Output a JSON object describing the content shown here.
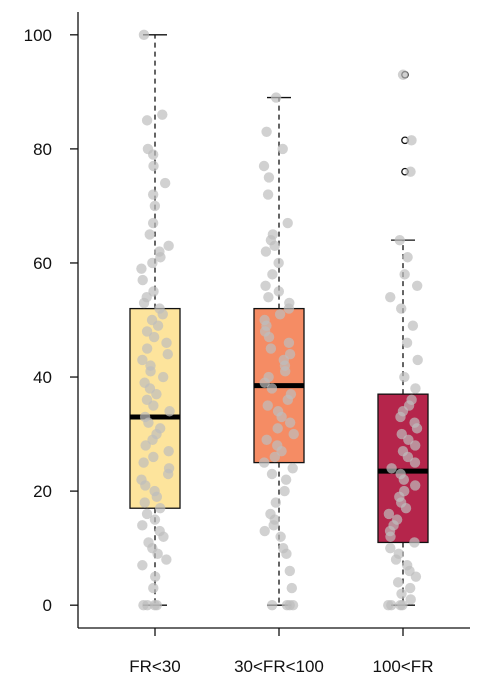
{
  "chart_data": {
    "type": "box",
    "title": "",
    "xlabel": "",
    "ylabel": "",
    "ylim": [
      -4,
      104
    ],
    "yticks": [
      0,
      20,
      40,
      60,
      80,
      100
    ],
    "grid": false,
    "legend": "none",
    "categories": [
      "FR<30",
      "30<FR<100",
      "100<FR"
    ],
    "series": [
      {
        "category": "FR<30",
        "color": "#FDE49C",
        "whisker_low": 0,
        "q1": 17,
        "median": 33,
        "q3": 52,
        "whisker_high": 100,
        "outliers": [],
        "points": [
          0,
          0,
          0,
          0,
          3,
          5,
          7,
          8,
          9,
          10,
          11,
          12,
          13,
          14,
          15,
          16,
          17,
          18,
          19,
          20,
          21,
          22,
          23,
          24,
          25,
          26,
          27,
          28,
          29,
          30,
          31,
          32,
          33,
          34,
          35,
          36,
          37,
          38,
          39,
          40,
          41,
          42,
          43,
          44,
          45,
          46,
          47,
          48,
          49,
          50,
          51,
          52,
          53,
          54,
          55,
          57,
          59,
          60,
          61,
          62,
          63,
          65,
          67,
          70,
          72,
          74,
          77,
          79,
          80,
          85,
          86,
          100
        ]
      },
      {
        "category": "30<FR<100",
        "color": "#F58C64",
        "whisker_low": 0,
        "q1": 25,
        "median": 38.5,
        "q3": 52,
        "whisker_high": 89,
        "outliers": [],
        "points": [
          0,
          0,
          0,
          0,
          3,
          6,
          9,
          10,
          12,
          13,
          14,
          15,
          16,
          18,
          20,
          22,
          23,
          24,
          25,
          26,
          27,
          28,
          29,
          30,
          31,
          32,
          33,
          34,
          35,
          36,
          37,
          38,
          39,
          40,
          41,
          42,
          43,
          44,
          45,
          46,
          47,
          48,
          49,
          50,
          51,
          52,
          53,
          54,
          55,
          56,
          58,
          60,
          62,
          63,
          64,
          65,
          67,
          72,
          75,
          77,
          80,
          83,
          89
        ]
      },
      {
        "category": "100<FR",
        "color": "#B5254B",
        "whisker_low": 0,
        "q1": 11,
        "median": 23.5,
        "q3": 37,
        "whisker_high": 64,
        "outliers": [
          76,
          81.5,
          93
        ],
        "points": [
          0,
          0,
          0,
          0,
          1,
          2,
          3,
          4,
          5,
          6,
          7,
          8,
          9,
          10,
          11,
          12,
          13,
          14,
          15,
          16,
          17,
          18,
          19,
          20,
          21,
          22,
          23,
          24,
          25,
          26,
          27,
          28,
          29,
          30,
          31,
          32,
          33,
          34,
          35,
          36,
          38,
          40,
          43,
          46,
          49,
          52,
          54,
          56,
          58,
          61,
          64,
          76,
          81.5,
          93
        ]
      }
    ]
  }
}
